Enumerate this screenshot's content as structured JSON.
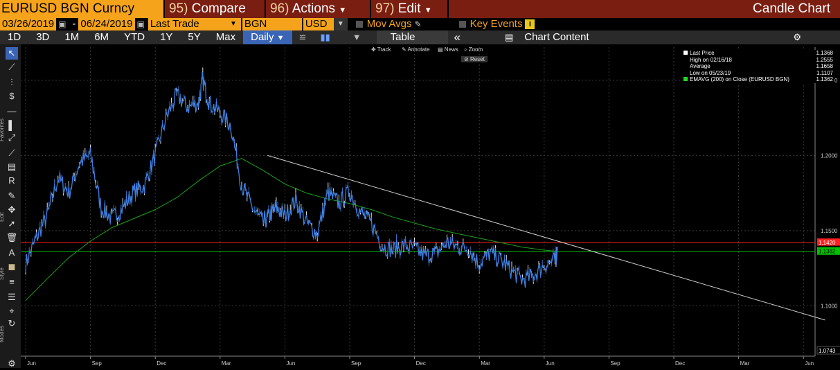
{
  "header": {
    "ticker": "EURUSD BGN Curncy",
    "compare": {
      "num": "95)",
      "label": "Compare"
    },
    "actions": {
      "num": "96)",
      "label": "Actions"
    },
    "edit": {
      "num": "97)",
      "label": "Edit"
    },
    "chart_type": "Candle Chart"
  },
  "controls": {
    "start_date": "03/26/2019",
    "dash": "-",
    "end_date": "06/24/2019",
    "field": "Last Trade",
    "source": "BGN",
    "currency": "USD",
    "mov_avgs": "Mov Avgs",
    "key_events": "Key Events",
    "info": "i"
  },
  "periods": {
    "items": [
      "1D",
      "3D",
      "1M",
      "6M",
      "YTD",
      "1Y",
      "5Y",
      "Max"
    ],
    "frequency": "Daily",
    "table": "Table",
    "collapse": "«",
    "chart_content": "Chart Content"
  },
  "chart_tools": {
    "track": "Track",
    "annotate": "Annotate",
    "news": "News",
    "zoom": "Zoom",
    "reset": "Reset"
  },
  "toolbar_labels": {
    "favorites": "Favorites",
    "edit": "Edit",
    "style": "Style",
    "modes": "Modes"
  },
  "toolbar_tools": [
    {
      "name": "pointer-icon",
      "glyph": "↖"
    },
    {
      "name": "line-draw-icon",
      "glyph": "⟋"
    },
    {
      "name": "fib-icon",
      "glyph": "⫶"
    },
    {
      "name": "dollar-icon",
      "glyph": "$"
    },
    {
      "name": "horizontal-line-icon",
      "glyph": "—"
    },
    {
      "name": "vertical-bars-icon",
      "glyph": "▌"
    },
    {
      "name": "channel-icon",
      "glyph": "⤢"
    },
    {
      "name": "trend-icon",
      "glyph": "⟋"
    },
    {
      "name": "band-icon",
      "glyph": "▤"
    },
    {
      "name": "retracement-icon",
      "glyph": "R"
    },
    {
      "name": "pen-icon",
      "glyph": "✎"
    },
    {
      "name": "move-icon",
      "glyph": "✥"
    },
    {
      "name": "select-arrow-icon",
      "glyph": "➚"
    },
    {
      "name": "trash-icon",
      "glyph": "🗑"
    },
    {
      "name": "text-icon",
      "glyph": "A"
    },
    {
      "name": "color-swatch-icon",
      "glyph": "■"
    },
    {
      "name": "line-style-icon",
      "glyph": "≡"
    },
    {
      "name": "line-width-icon",
      "glyph": "☰"
    },
    {
      "name": "crosshair-icon",
      "glyph": "⌖"
    },
    {
      "name": "refresh-icon",
      "glyph": "↻"
    },
    {
      "name": "settings-icon",
      "glyph": "⚙"
    }
  ],
  "legend": {
    "items": [
      {
        "label": "Last Price",
        "value": "1.1368",
        "swatch": "#ffffff"
      },
      {
        "label": "High on 02/16/18",
        "value": "1.2555",
        "swatch": ""
      },
      {
        "label": "Average",
        "value": "1.1658",
        "swatch": ""
      },
      {
        "label": "Low on 05/23/19",
        "value": "1.1107",
        "swatch": ""
      },
      {
        "label": "EMAVG (200)  on Close (EURUSD BGN)",
        "value": "1.1362",
        "swatch": "#25d625"
      }
    ]
  },
  "colors": {
    "price": "#3f7fe0",
    "ema": "#1aa21a",
    "resistance": "#ff2020",
    "support": "#00c000",
    "trendline": "#cfcfcf",
    "axis_text": "#cccccc",
    "grid": "#3a3a3a"
  },
  "chart_data": {
    "type": "line",
    "ylim": [
      1.0743,
      1.2555
    ],
    "y_ticks": [
      1.25,
      1.2,
      1.15,
      1.1
    ],
    "y_tick_labels": [
      "1.2500",
      "1.2000",
      "1.1500",
      "1.1000"
    ],
    "bottom_label": "1.0743",
    "x_tick_labels": [
      "Jun",
      "Sep",
      "Dec",
      "Mar",
      "Jun",
      "Sep",
      "Dec",
      "Mar",
      "Jun",
      "Sep",
      "Dec",
      "Mar",
      "Jun"
    ],
    "x_tick_periods": [
      0,
      3,
      6,
      9,
      12,
      15,
      18,
      21,
      24,
      27,
      30,
      33,
      36
    ],
    "series": [
      {
        "name": "Last Price",
        "x": [
          0,
          0.5,
          1,
          1.5,
          2,
          2.5,
          3,
          3.5,
          4,
          4.5,
          5,
          5.5,
          6,
          6.5,
          7,
          7.5,
          8,
          8.2,
          8.5,
          9,
          9.5,
          10,
          10.5,
          11,
          11.3,
          11.6,
          12,
          12.5,
          13,
          13.5,
          14,
          14.5,
          15,
          15.5,
          16,
          16.5,
          17,
          17.5,
          18,
          18.5,
          19,
          19.5,
          20,
          20.5,
          21,
          21.5,
          22,
          22.5,
          23,
          23.5,
          24,
          24.5,
          24.6
        ],
        "values": [
          1.128,
          1.145,
          1.16,
          1.185,
          1.175,
          1.195,
          1.2,
          1.165,
          1.158,
          1.165,
          1.176,
          1.18,
          1.2,
          1.225,
          1.24,
          1.232,
          1.235,
          1.25,
          1.235,
          1.228,
          1.22,
          1.18,
          1.165,
          1.155,
          1.16,
          1.165,
          1.16,
          1.17,
          1.155,
          1.148,
          1.175,
          1.168,
          1.176,
          1.162,
          1.155,
          1.14,
          1.137,
          1.14,
          1.138,
          1.133,
          1.135,
          1.142,
          1.139,
          1.138,
          1.128,
          1.135,
          1.13,
          1.123,
          1.117,
          1.12,
          1.127,
          1.13,
          1.1368
        ]
      },
      {
        "name": "EMAVG (200)",
        "x": [
          0,
          1,
          2,
          3,
          4,
          5,
          6,
          7,
          8,
          9,
          10,
          11,
          12,
          13,
          14,
          15,
          16,
          17,
          18,
          19,
          20,
          21,
          22,
          23,
          24,
          24.6
        ],
        "values": [
          1.1035,
          1.118,
          1.132,
          1.143,
          1.152,
          1.158,
          1.164,
          1.172,
          1.183,
          1.193,
          1.198,
          1.19,
          1.181,
          1.175,
          1.171,
          1.168,
          1.164,
          1.159,
          1.155,
          1.151,
          1.148,
          1.145,
          1.142,
          1.139,
          1.137,
          1.1362
        ]
      }
    ],
    "horizontal_lines": [
      {
        "value": 1.142,
        "label": "1.1420"
      },
      {
        "value": 1.1362,
        "label": "1.1362"
      }
    ],
    "last_price_label": "1.1368",
    "trendline": {
      "x": [
        11.2,
        37
      ],
      "values": [
        1.2,
        1.0905
      ]
    }
  }
}
